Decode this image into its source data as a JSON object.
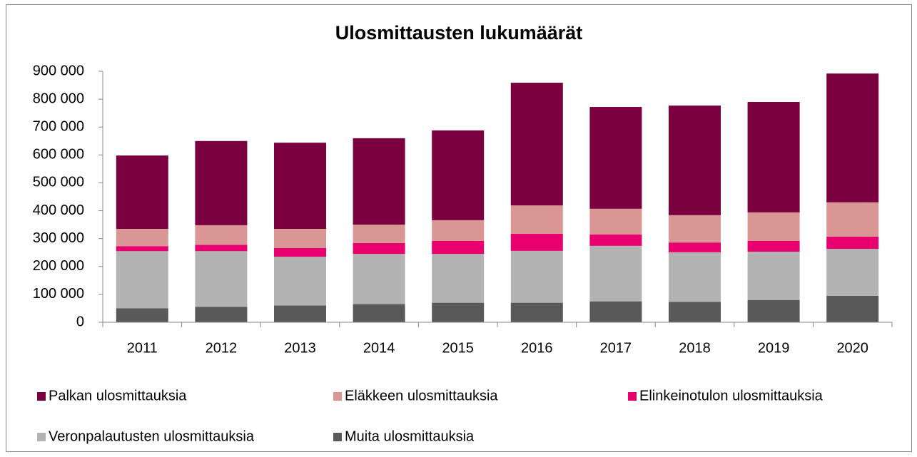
{
  "chart_data": {
    "type": "stacked_bar",
    "title": "Ulosmittausten lukumäärät",
    "categories": [
      "2011",
      "2012",
      "2013",
      "2014",
      "2015",
      "2016",
      "2017",
      "2018",
      "2019",
      "2020"
    ],
    "series": [
      {
        "name": "Palkan ulosmittauksia",
        "color": "#7b003f",
        "values": [
          263000,
          302000,
          309000,
          310000,
          322000,
          440000,
          365000,
          393000,
          396000,
          462000
        ]
      },
      {
        "name": "Eläkkeen ulosmittauksia",
        "color": "#d99694",
        "values": [
          62000,
          70000,
          69000,
          66000,
          74000,
          102000,
          92000,
          98000,
          102000,
          123000
        ]
      },
      {
        "name": "Elinkeinotulon ulosmittauksia",
        "color": "#e8006e",
        "values": [
          18000,
          23000,
          31000,
          39000,
          47000,
          61000,
          41000,
          35000,
          39000,
          44000
        ]
      },
      {
        "name": "Veronpalautusten ulosmittauksia",
        "color": "#b3b3b3",
        "values": [
          205000,
          200000,
          175000,
          180000,
          175000,
          186000,
          199000,
          178000,
          173000,
          168000
        ]
      },
      {
        "name": "Muita ulosmittauksia",
        "color": "#595959",
        "values": [
          50000,
          55000,
          60000,
          65000,
          70000,
          70000,
          75000,
          73000,
          80000,
          95000
        ]
      }
    ],
    "ylim": [
      0,
      900000
    ],
    "yticks": [
      0,
      {
        "value": 100000,
        "label": "100 000"
      },
      {
        "value": 200000,
        "label": "200 000"
      },
      {
        "value": 300000,
        "label": "300 000"
      },
      {
        "value": 400000,
        "label": "400 000"
      },
      {
        "value": 500000,
        "label": "500 000"
      },
      {
        "value": 600000,
        "label": "600 000"
      },
      {
        "value": 700000,
        "label": "700 000"
      },
      {
        "value": 800000,
        "label": "800 000"
      },
      {
        "value": 900000,
        "label": "900 000"
      }
    ],
    "grid": false,
    "legend": "bottom"
  }
}
